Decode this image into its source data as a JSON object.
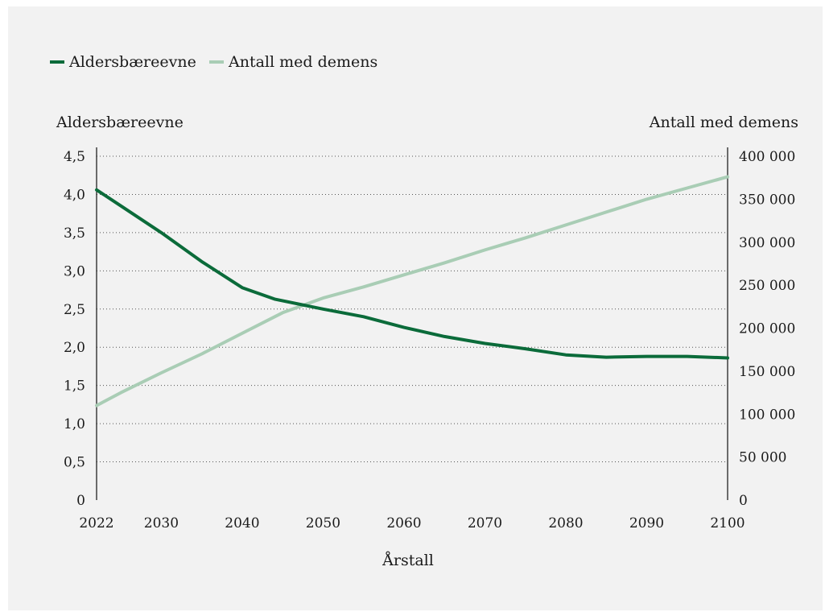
{
  "chart_data": {
    "type": "line",
    "xlabel": "Årstall",
    "x_ticks": [
      2022,
      2030,
      2040,
      2050,
      2060,
      2070,
      2080,
      2090,
      2100
    ],
    "xlim": [
      2022,
      2100
    ],
    "left_axis": {
      "label": "Aldersbæreevne",
      "ylim": [
        0,
        4.5
      ],
      "ticks": [
        0,
        0.5,
        1.0,
        1.5,
        2.0,
        2.5,
        3.0,
        3.5,
        4.0,
        4.5
      ],
      "tick_labels": [
        "0",
        "0,5",
        "1,0",
        "1,5",
        "2,0",
        "2,5",
        "3,0",
        "3,5",
        "4,0",
        "4,5"
      ]
    },
    "right_axis": {
      "label": "Antall med demens",
      "ylim": [
        0,
        400000
      ],
      "ticks": [
        0,
        50000,
        100000,
        150000,
        200000,
        250000,
        300000,
        350000,
        400000
      ],
      "tick_labels": [
        "0",
        "50 000",
        "100 000",
        "150 000",
        "200 000",
        "250 000",
        "300 000",
        "350 000",
        "400 000"
      ]
    },
    "grid": "horizontal dotted",
    "legend_position": "top-left",
    "series": [
      {
        "name": "Aldersbæreevne",
        "axis": "left",
        "color": "#0b6b3a",
        "x": [
          2022,
          2025,
          2030,
          2035,
          2040,
          2044,
          2050,
          2055,
          2060,
          2065,
          2070,
          2075,
          2080,
          2085,
          2090,
          2095,
          2100
        ],
        "y": [
          4.06,
          3.85,
          3.5,
          3.12,
          2.78,
          2.63,
          2.5,
          2.4,
          2.26,
          2.14,
          2.05,
          1.98,
          1.9,
          1.87,
          1.88,
          1.88,
          1.86
        ]
      },
      {
        "name": "Antall med demens",
        "axis": "right",
        "color": "#a9cdb5",
        "x": [
          2022,
          2025,
          2030,
          2035,
          2040,
          2045,
          2050,
          2055,
          2060,
          2065,
          2070,
          2075,
          2080,
          2085,
          2090,
          2095,
          2100
        ],
        "y": [
          110000,
          125000,
          148000,
          170000,
          194000,
          218000,
          235000,
          248000,
          262000,
          276000,
          291000,
          305000,
          320000,
          335000,
          350000,
          363000,
          376000
        ]
      }
    ]
  }
}
